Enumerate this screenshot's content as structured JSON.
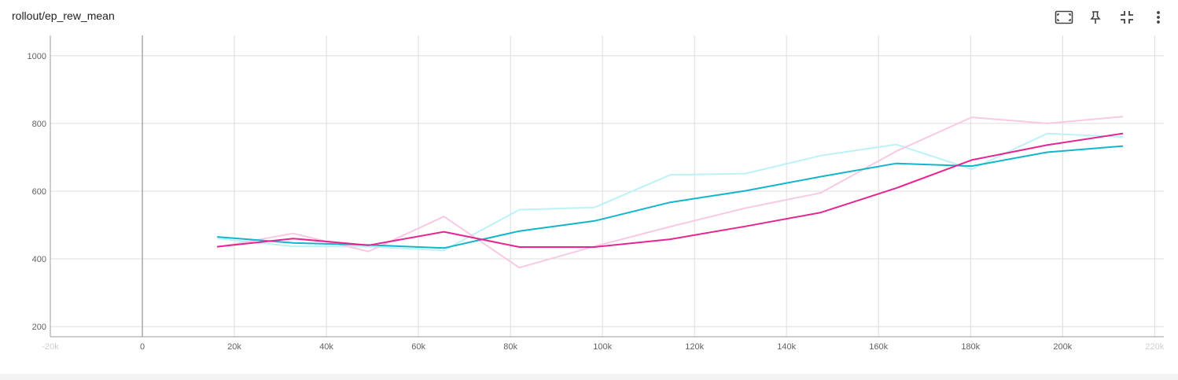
{
  "title": "rollout/ep_rew_mean",
  "toolbar": {
    "icons": [
      "fit-domain-icon",
      "pin-icon",
      "collapse-icon",
      "more-vert-icon"
    ]
  },
  "colors": {
    "grid": "#dddddd",
    "zero_axis": "#a8a8a8",
    "axis_line": "#9e9e9e",
    "teal": "#12b5cb",
    "teal_raw": "#bdf1f8",
    "magenta": "#e52592",
    "magenta_raw": "#f8c9e3"
  },
  "chart_data": {
    "type": "line",
    "title": "rollout/ep_rew_mean",
    "xlim": [
      -20000,
      222000
    ],
    "ylim": [
      170,
      1060
    ],
    "x_ticks": [
      -20000,
      0,
      20000,
      40000,
      60000,
      80000,
      100000,
      120000,
      140000,
      160000,
      180000,
      200000,
      220000
    ],
    "x_tick_labels": [
      "-20k",
      "0",
      "20k",
      "40k",
      "60k",
      "80k",
      "100k",
      "120k",
      "140k",
      "160k",
      "180k",
      "200k",
      "220k"
    ],
    "y_ticks": [
      200,
      400,
      600,
      800,
      1000
    ],
    "y_tick_labels": [
      "200",
      "400",
      "600",
      "800",
      "1000"
    ],
    "grid": true,
    "x": [
      16384,
      32768,
      49152,
      65536,
      81920,
      98304,
      114688,
      131072,
      147456,
      163840,
      180224,
      196608,
      212992
    ],
    "series": [
      {
        "role": "raw",
        "color": "#bdf1f8",
        "values": [
          460,
          437,
          436,
          425,
          545,
          552,
          648,
          652,
          705,
          738,
          665,
          770,
          760
        ]
      },
      {
        "role": "raw",
        "color": "#f8c9e3",
        "values": [
          435,
          475,
          422,
          525,
          374,
          437,
          495,
          550,
          595,
          718,
          818,
          800,
          820
        ]
      },
      {
        "role": "smoothed",
        "color": "#12b5cb",
        "values": [
          465,
          447,
          441,
          432,
          482,
          512,
          567,
          601,
          643,
          682,
          674,
          715,
          733
        ]
      },
      {
        "role": "smoothed",
        "color": "#e52592",
        "values": [
          436,
          460,
          440,
          480,
          435,
          435,
          458,
          496,
          537,
          609,
          692,
          736,
          770
        ]
      }
    ]
  }
}
